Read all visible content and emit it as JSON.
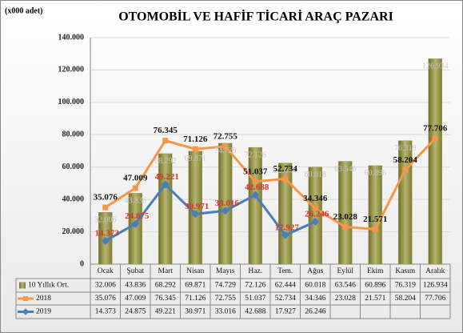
{
  "chart_data": {
    "type": "bar-line",
    "title": "OTOMOBİL VE HAFİF TİCARİ  ARAÇ PAZARI",
    "y_unit_label": "(x000 adet)",
    "categories": [
      "Ocak",
      "Şubat",
      "Mart",
      "Nisan",
      "Mayıs",
      "Haz.",
      "Tem.",
      "Ağus",
      "Eylül",
      "Ekim",
      "Kasım",
      "Aralık"
    ],
    "ylim": [
      0,
      140000
    ],
    "yticks": [
      0,
      {
        "value": 20000,
        "label": "20.000"
      },
      {
        "value": 40000,
        "label": "40.000"
      },
      {
        "value": 60000,
        "label": "60.000"
      },
      {
        "value": 80000,
        "label": "80.000"
      },
      {
        "value": 100000,
        "label": "100.000"
      },
      {
        "value": 120000,
        "label": "120.000"
      },
      {
        "value": 140000,
        "label": "140.000"
      }
    ],
    "grid": true,
    "series": [
      {
        "name": "10 Yıllık Ort.",
        "kind": "bar",
        "color": "#9a9a4e",
        "values": [
          32006,
          43836,
          68292,
          69871,
          74729,
          72126,
          62444,
          60018,
          63546,
          60896,
          76319,
          126934
        ],
        "value_labels": [
          "32.006",
          "43.836",
          "68.292",
          "69.871",
          "74.729",
          "72.126",
          "62.444",
          "60.018",
          "63.546",
          "60.896",
          "76.319",
          "126.934"
        ]
      },
      {
        "name": "2018",
        "kind": "line",
        "color": "#f79646",
        "values": [
          35076,
          47009,
          76345,
          71126,
          72755,
          51037,
          52734,
          34346,
          23028,
          21571,
          58204,
          77706
        ],
        "value_labels": [
          "35.076",
          "47.009",
          "76.345",
          "71.126",
          "72.755",
          "51.037",
          "52.734",
          "34.346",
          "23.028",
          "21.571",
          "58.204",
          "77.706"
        ]
      },
      {
        "name": "2019",
        "kind": "line",
        "color": "#4a7ebb",
        "values": [
          14373,
          24875,
          49221,
          30971,
          33016,
          42688,
          17927,
          26246,
          null,
          null,
          null,
          null
        ],
        "value_labels": [
          "14.373",
          "24.875",
          "49.221",
          "30.971",
          "33.016",
          "42.688",
          "17.927",
          "26.246",
          null,
          null,
          null,
          null
        ]
      }
    ]
  }
}
